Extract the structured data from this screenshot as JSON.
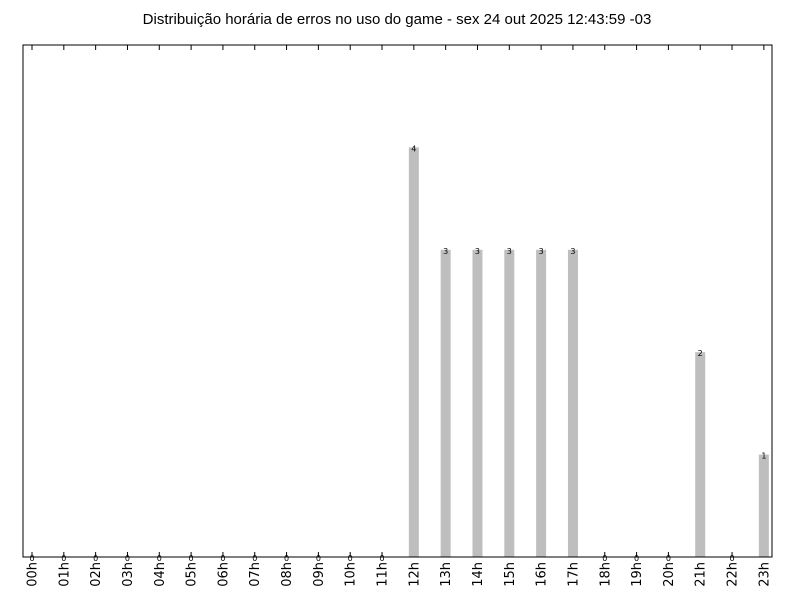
{
  "chart_data": {
    "type": "bar",
    "title": "Distribuição horária de erros no uso do game - sex 24 out 2025 12:43:59 -03",
    "categories": [
      "00h",
      "01h",
      "02h",
      "03h",
      "04h",
      "05h",
      "06h",
      "07h",
      "08h",
      "09h",
      "10h",
      "11h",
      "12h",
      "13h",
      "14h",
      "15h",
      "16h",
      "17h",
      "18h",
      "19h",
      "20h",
      "21h",
      "22h",
      "23h"
    ],
    "values": [
      0,
      0,
      0,
      0,
      0,
      0,
      0,
      0,
      0,
      0,
      0,
      0,
      4,
      3,
      3,
      3,
      3,
      3,
      0,
      0,
      0,
      2,
      0,
      1
    ],
    "ylim": [
      0,
      5
    ],
    "bar_color": "#bebebe",
    "data_labels": true,
    "grid": false
  }
}
